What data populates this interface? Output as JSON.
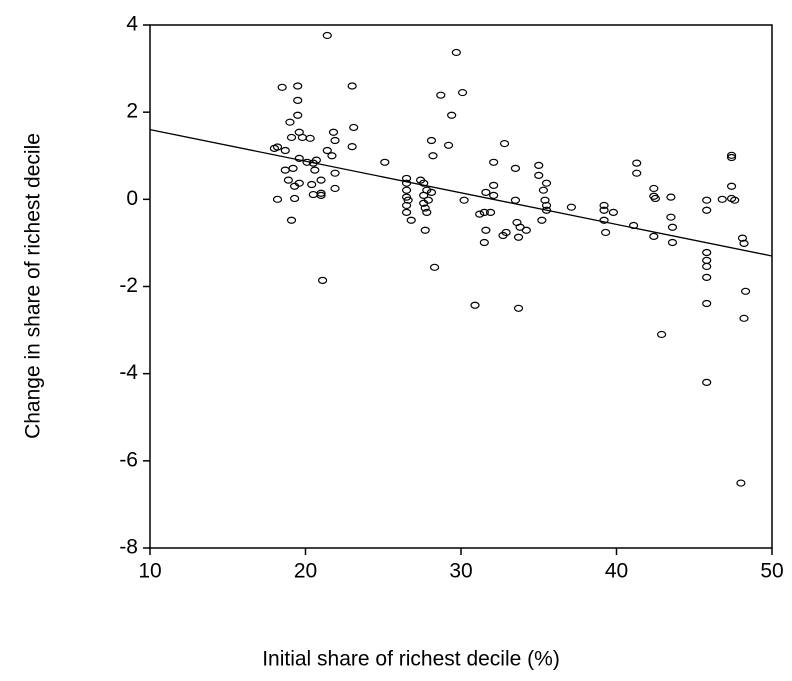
{
  "chart_data": {
    "type": "scatter",
    "x_label": "Initial share of richest decile (%)",
    "y_label": "Change in share of richest decile",
    "x": [
      18.0,
      18.2,
      18.5,
      18.2,
      18.7,
      18.7,
      18.9,
      19.1,
      19.0,
      19.1,
      19.2,
      19.3,
      19.3,
      19.5,
      19.5,
      19.5,
      19.6,
      19.6,
      19.6,
      19.8,
      20.1,
      20.3,
      20.4,
      20.5,
      20.5,
      20.6,
      20.7,
      21.0,
      21.0,
      21.1,
      21.0,
      21.4,
      21.4,
      21.7,
      21.8,
      21.9,
      21.9,
      21.9,
      23.0,
      23.1,
      23.0,
      25.1,
      26.5,
      26.5,
      26.5,
      26.5,
      26.5,
      26.5,
      26.6,
      26.8,
      27.4,
      27.6,
      27.6,
      27.6,
      27.7,
      27.7,
      27.8,
      27.8,
      27.9,
      28.1,
      28.1,
      28.3,
      28.2,
      28.7,
      29.2,
      29.4,
      29.7,
      30.1,
      30.2,
      30.9,
      31.2,
      31.5,
      31.5,
      31.6,
      31.6,
      31.9,
      32.1,
      32.1,
      32.1,
      32.7,
      32.8,
      32.9,
      33.5,
      33.5,
      33.6,
      33.7,
      33.7,
      33.8,
      34.2,
      35.0,
      35.0,
      35.2,
      35.3,
      35.4,
      35.5,
      35.5,
      35.5,
      37.1,
      39.2,
      39.2,
      39.3,
      39.2,
      39.8,
      41.1,
      41.3,
      41.3,
      42.4,
      42.4,
      42.4,
      42.5,
      42.9,
      43.5,
      43.5,
      43.6,
      43.6,
      45.8,
      45.8,
      45.8,
      45.8,
      45.8,
      45.8,
      45.8,
      45.8,
      46.8,
      47.4,
      47.4,
      47.4,
      47.6,
      48.0,
      48.1,
      48.2,
      48.3,
      48.2,
      47.4
    ],
    "values": [
      1.17,
      1.2,
      2.57,
      0,
      1.12,
      0.67,
      0.44,
      -0.48,
      1.77,
      1.42,
      0.71,
      0.02,
      0.3,
      2.6,
      2.27,
      1.93,
      1.54,
      0.94,
      0.37,
      1.42,
      0.85,
      1.4,
      0.34,
      0.11,
      0.83,
      0.67,
      0.9,
      0.44,
      0.09,
      -1.86,
      0.14,
      3.76,
      1.12,
      1.0,
      1.54,
      0.6,
      0.25,
      1.35,
      2.6,
      1.65,
      1.21,
      0.85,
      0.48,
      0.37,
      0.21,
      0.05,
      -0.14,
      -0.3,
      -0.02,
      -0.48,
      0.44,
      0.37,
      0.09,
      -0.09,
      -0.2,
      -0.71,
      -0.3,
      0.21,
      -0.02,
      1.35,
      0.16,
      -1.56,
      1.0,
      2.39,
      1.24,
      1.93,
      3.37,
      2.45,
      -0.02,
      -2.43,
      -0.34,
      -0.99,
      -0.3,
      0.16,
      -0.71,
      -0.3,
      0.32,
      0.85,
      0.09,
      -0.83,
      1.28,
      -0.76,
      0.71,
      -0.02,
      -0.53,
      -0.87,
      -2.5,
      -0.64,
      -0.71,
      0.78,
      0.55,
      -0.48,
      0.21,
      -0.02,
      -0.14,
      0.37,
      -0.25,
      -0.18,
      -0.14,
      -0.48,
      -0.76,
      -0.25,
      -0.3,
      -0.6,
      0.83,
      0.6,
      0.25,
      0.07,
      -0.85,
      0.02,
      -3.1,
      0.05,
      -0.41,
      -0.64,
      -0.99,
      -0.02,
      -0.25,
      -1.22,
      -1.4,
      -1.54,
      -1.79,
      -2.39,
      -4.2,
      0,
      0.96,
      0.3,
      0.02,
      -0.02,
      -6.51,
      -0.89,
      -1.01,
      -2.11,
      -2.73,
      1.01
    ],
    "color": "#000000",
    "trend_line": {
      "x": [
        10,
        50
      ],
      "values": [
        1.6,
        -1.3
      ]
    },
    "xlim": [
      10,
      50
    ],
    "xticks": [
      10,
      20,
      30,
      40,
      50
    ],
    "ylim": [
      -8,
      4
    ],
    "yticks": [
      -8,
      -6,
      -4,
      -2,
      0,
      2,
      4
    ],
    "grid": false
  }
}
